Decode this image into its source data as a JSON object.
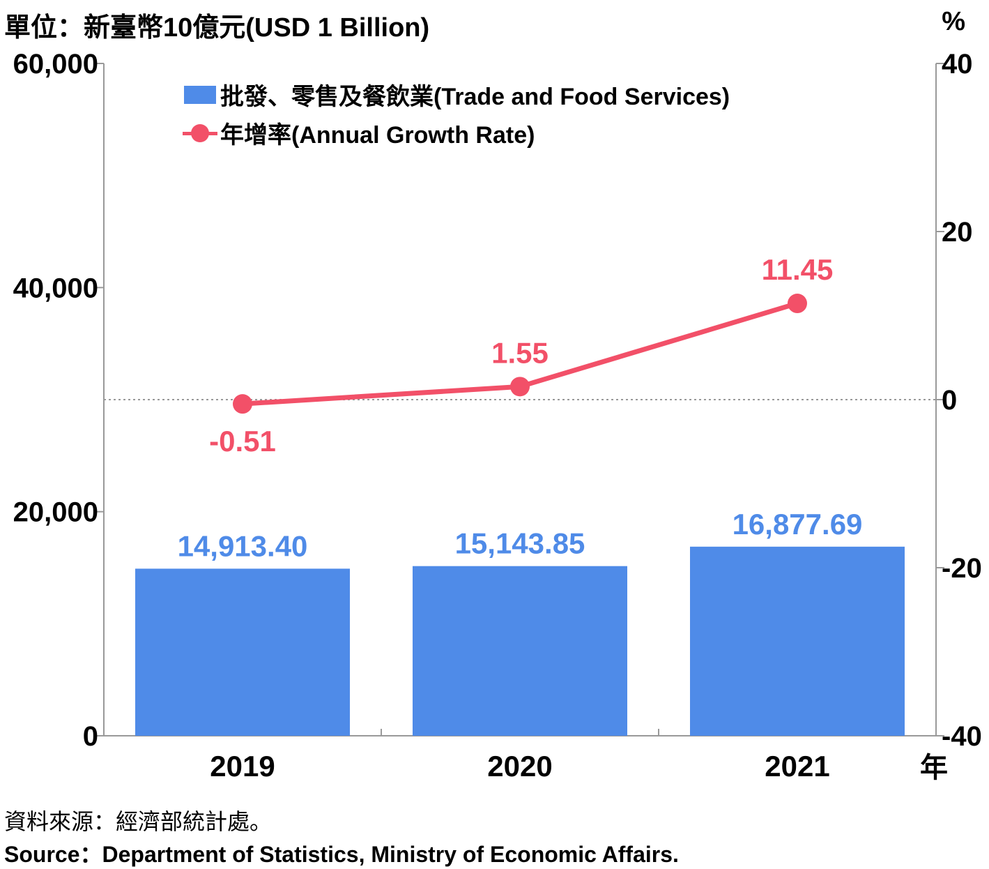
{
  "unit_left": "單位：新臺幣10億元(USD 1 Billion)",
  "unit_right": "%",
  "x_unit": "年",
  "legend": {
    "bar": "批發、零售及餐飲業(Trade and Food Services)",
    "line": "年增率(Annual Growth Rate)"
  },
  "source_zh": "資料來源：經濟部統計處。",
  "source_en": "Source：Department of Statistics, Ministry of Economic Affairs.",
  "colors": {
    "bar": "#4f8be8",
    "line": "#f25068",
    "axis": "#999999"
  },
  "chart_data": {
    "type": "bar",
    "categories": [
      "2019",
      "2020",
      "2021"
    ],
    "series": [
      {
        "name": "批發、零售及餐飲業(Trade and Food Services)",
        "type": "bar",
        "axis": "left",
        "values": [
          14913.4,
          15143.85,
          16877.69
        ],
        "labels": [
          "14,913.40",
          "15,143.85",
          "16,877.69"
        ]
      },
      {
        "name": "年增率(Annual Growth Rate)",
        "type": "line",
        "axis": "right",
        "values": [
          -0.51,
          1.55,
          11.45
        ],
        "labels": [
          "-0.51",
          "1.55",
          "11.45"
        ]
      }
    ],
    "y_left": {
      "ylim": [
        0,
        60000
      ],
      "ticks": [
        0,
        20000,
        40000,
        60000
      ],
      "tick_labels": [
        "0",
        "20,000",
        "40,000",
        "60,000"
      ]
    },
    "y_right": {
      "ylim": [
        -40,
        40
      ],
      "ticks": [
        -40,
        -20,
        0,
        20,
        40
      ],
      "tick_labels": [
        "-40",
        "-20",
        "0",
        "20",
        "40"
      ]
    },
    "legend_position": "top-left",
    "grid": false
  }
}
